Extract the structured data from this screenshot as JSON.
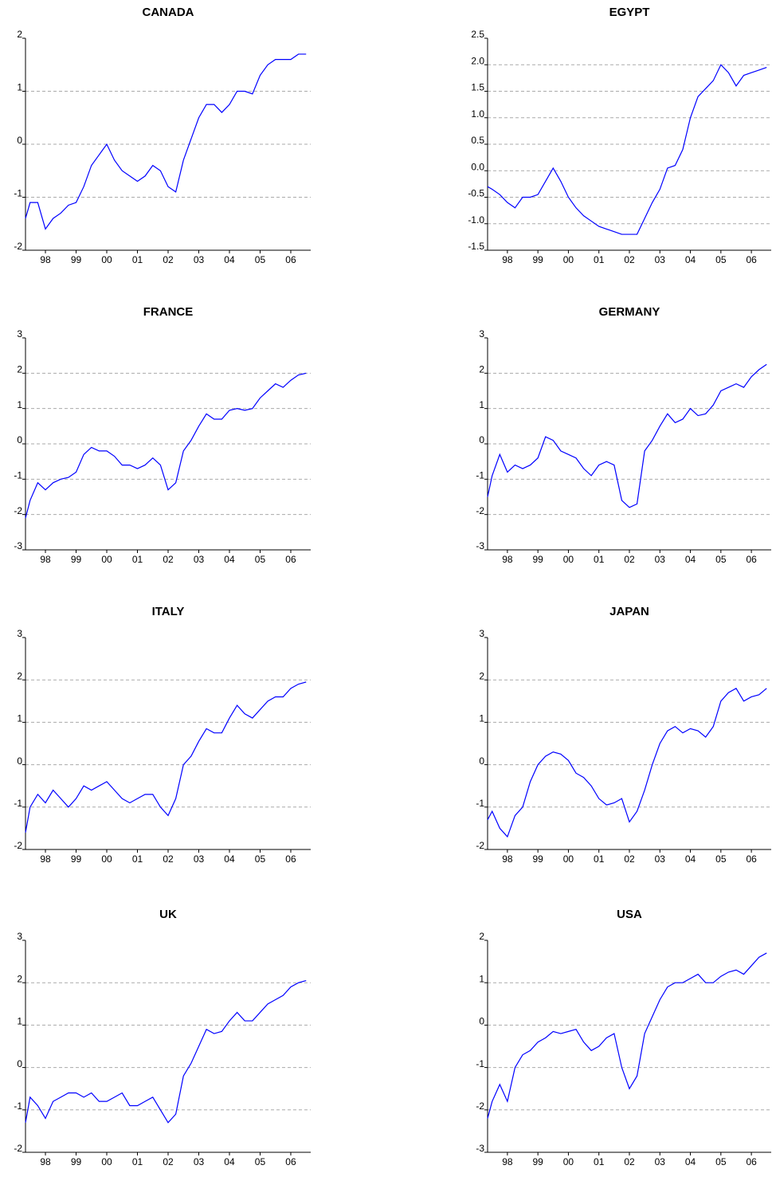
{
  "chart_data": [
    {
      "type": "line",
      "title": "CANADA",
      "grid": true,
      "xlim": [
        1997.85,
        2007.15
      ],
      "ylim": [
        -2,
        2
      ],
      "yticks": [
        -2,
        -1,
        0,
        1,
        2
      ],
      "xticks": [
        {
          "value": 1998.5,
          "label": "98"
        },
        {
          "value": 1999.5,
          "label": "99"
        },
        {
          "value": 2000.5,
          "label": "00"
        },
        {
          "value": 2001.5,
          "label": "01"
        },
        {
          "value": 2002.5,
          "label": "02"
        },
        {
          "value": 2003.5,
          "label": "03"
        },
        {
          "value": 2004.5,
          "label": "04"
        },
        {
          "value": 2005.5,
          "label": "05"
        },
        {
          "value": 2006.5,
          "label": "06"
        }
      ],
      "x": [
        1997.85,
        1998.0,
        1998.25,
        1998.5,
        1998.75,
        1999.0,
        1999.25,
        1999.5,
        1999.75,
        2000.0,
        2000.25,
        2000.5,
        2000.75,
        2001.0,
        2001.25,
        2001.5,
        2001.75,
        2002.0,
        2002.25,
        2002.5,
        2002.75,
        2003.0,
        2003.25,
        2003.5,
        2003.75,
        2004.0,
        2004.25,
        2004.5,
        2004.75,
        2005.0,
        2005.25,
        2005.5,
        2005.75,
        2006.0,
        2006.25,
        2006.5,
        2006.75,
        2007.0
      ],
      "color": "#0000ff",
      "values": [
        -1.4,
        -1.1,
        -1.1,
        -1.6,
        -1.4,
        -1.3,
        -1.15,
        -1.1,
        -0.8,
        -0.4,
        -0.2,
        0.0,
        -0.3,
        -0.5,
        -0.6,
        -0.7,
        -0.6,
        -0.4,
        -0.5,
        -0.8,
        -0.9,
        -0.3,
        0.1,
        0.5,
        0.75,
        0.75,
        0.6,
        0.75,
        1.0,
        1.0,
        0.95,
        1.3,
        1.5,
        1.6,
        1.6,
        1.6,
        1.7,
        1.7
      ]
    },
    {
      "type": "line",
      "title": "EGYPT",
      "grid": true,
      "xlim": [
        1997.85,
        2007.15
      ],
      "ylim": [
        -1.5,
        2.5
      ],
      "yticks": [
        -1.5,
        {
          "value": -1,
          "label": "-1.0"
        },
        -0.5,
        {
          "value": 0,
          "label": "0.0"
        },
        0.5,
        {
          "value": 1,
          "label": "1.0"
        },
        1.5,
        {
          "value": 2,
          "label": "2.0"
        },
        2.5
      ],
      "xticks": [
        {
          "value": 1998.5,
          "label": "98"
        },
        {
          "value": 1999.5,
          "label": "99"
        },
        {
          "value": 2000.5,
          "label": "00"
        },
        {
          "value": 2001.5,
          "label": "01"
        },
        {
          "value": 2002.5,
          "label": "02"
        },
        {
          "value": 2003.5,
          "label": "03"
        },
        {
          "value": 2004.5,
          "label": "04"
        },
        {
          "value": 2005.5,
          "label": "05"
        },
        {
          "value": 2006.5,
          "label": "06"
        }
      ],
      "x": [
        1997.85,
        1998.0,
        1998.25,
        1998.5,
        1998.75,
        1999.0,
        1999.25,
        1999.5,
        1999.75,
        2000.0,
        2000.25,
        2000.5,
        2000.75,
        2001.0,
        2001.25,
        2001.5,
        2001.75,
        2002.0,
        2002.25,
        2002.5,
        2002.75,
        2003.0,
        2003.25,
        2003.5,
        2003.75,
        2004.0,
        2004.25,
        2004.5,
        2004.75,
        2005.0,
        2005.25,
        2005.5,
        2005.75,
        2006.0,
        2006.25,
        2006.5,
        2006.75,
        2007.0
      ],
      "color": "#0000ff",
      "values": [
        -0.3,
        -0.35,
        -0.45,
        -0.6,
        -0.7,
        -0.5,
        -0.5,
        -0.45,
        -0.2,
        0.05,
        -0.2,
        -0.5,
        -0.7,
        -0.85,
        -0.95,
        -1.05,
        -1.1,
        -1.15,
        -1.2,
        -1.2,
        -1.2,
        -0.9,
        -0.6,
        -0.35,
        0.05,
        0.1,
        0.4,
        1.0,
        1.4,
        1.55,
        1.7,
        2.0,
        1.85,
        1.6,
        1.8,
        1.85,
        1.9,
        1.95
      ]
    },
    {
      "type": "line",
      "title": "FRANCE",
      "grid": true,
      "xlim": [
        1997.85,
        2007.15
      ],
      "ylim": [
        -3,
        3
      ],
      "yticks": [
        -3,
        -2,
        -1,
        0,
        1,
        2,
        3
      ],
      "xticks": [
        {
          "value": 1998.5,
          "label": "98"
        },
        {
          "value": 1999.5,
          "label": "99"
        },
        {
          "value": 2000.5,
          "label": "00"
        },
        {
          "value": 2001.5,
          "label": "01"
        },
        {
          "value": 2002.5,
          "label": "02"
        },
        {
          "value": 2003.5,
          "label": "03"
        },
        {
          "value": 2004.5,
          "label": "04"
        },
        {
          "value": 2005.5,
          "label": "05"
        },
        {
          "value": 2006.5,
          "label": "06"
        }
      ],
      "x": [
        1997.85,
        1998.0,
        1998.25,
        1998.5,
        1998.75,
        1999.0,
        1999.25,
        1999.5,
        1999.75,
        2000.0,
        2000.25,
        2000.5,
        2000.75,
        2001.0,
        2001.25,
        2001.5,
        2001.75,
        2002.0,
        2002.25,
        2002.5,
        2002.75,
        2003.0,
        2003.25,
        2003.5,
        2003.75,
        2004.0,
        2004.25,
        2004.5,
        2004.75,
        2005.0,
        2005.25,
        2005.5,
        2005.75,
        2006.0,
        2006.25,
        2006.5,
        2006.75,
        2007.0
      ],
      "color": "#0000ff",
      "values": [
        -2.1,
        -1.6,
        -1.1,
        -1.3,
        -1.1,
        -1.0,
        -0.95,
        -0.8,
        -0.3,
        -0.1,
        -0.2,
        -0.2,
        -0.35,
        -0.6,
        -0.6,
        -0.7,
        -0.6,
        -0.4,
        -0.6,
        -1.3,
        -1.1,
        -0.2,
        0.1,
        0.5,
        0.85,
        0.7,
        0.7,
        0.95,
        1.0,
        0.95,
        1.0,
        1.3,
        1.5,
        1.7,
        1.6,
        1.8,
        1.95,
        2.0
      ]
    },
    {
      "type": "line",
      "title": "GERMANY",
      "grid": true,
      "xlim": [
        1997.85,
        2007.15
      ],
      "ylim": [
        -3,
        3
      ],
      "yticks": [
        -3,
        -2,
        -1,
        0,
        1,
        2,
        3
      ],
      "xticks": [
        {
          "value": 1998.5,
          "label": "98"
        },
        {
          "value": 1999.5,
          "label": "99"
        },
        {
          "value": 2000.5,
          "label": "00"
        },
        {
          "value": 2001.5,
          "label": "01"
        },
        {
          "value": 2002.5,
          "label": "02"
        },
        {
          "value": 2003.5,
          "label": "03"
        },
        {
          "value": 2004.5,
          "label": "04"
        },
        {
          "value": 2005.5,
          "label": "05"
        },
        {
          "value": 2006.5,
          "label": "06"
        }
      ],
      "x": [
        1997.85,
        1998.0,
        1998.25,
        1998.5,
        1998.75,
        1999.0,
        1999.25,
        1999.5,
        1999.75,
        2000.0,
        2000.25,
        2000.5,
        2000.75,
        2001.0,
        2001.25,
        2001.5,
        2001.75,
        2002.0,
        2002.25,
        2002.5,
        2002.75,
        2003.0,
        2003.25,
        2003.5,
        2003.75,
        2004.0,
        2004.25,
        2004.5,
        2004.75,
        2005.0,
        2005.25,
        2005.5,
        2005.75,
        2006.0,
        2006.25,
        2006.5,
        2006.75,
        2007.0
      ],
      "color": "#0000ff",
      "values": [
        -1.5,
        -0.9,
        -0.3,
        -0.8,
        -0.6,
        -0.7,
        -0.6,
        -0.4,
        0.2,
        0.1,
        -0.2,
        -0.3,
        -0.4,
        -0.7,
        -0.9,
        -0.6,
        -0.5,
        -0.6,
        -1.6,
        -1.8,
        -1.7,
        -0.2,
        0.1,
        0.5,
        0.85,
        0.6,
        0.7,
        1.0,
        0.8,
        0.85,
        1.1,
        1.5,
        1.6,
        1.7,
        1.6,
        1.9,
        2.1,
        2.25
      ]
    },
    {
      "type": "line",
      "title": "ITALY",
      "grid": true,
      "xlim": [
        1997.85,
        2007.15
      ],
      "ylim": [
        -2,
        3
      ],
      "yticks": [
        -2,
        -1,
        0,
        1,
        2,
        3
      ],
      "xticks": [
        {
          "value": 1998.5,
          "label": "98"
        },
        {
          "value": 1999.5,
          "label": "99"
        },
        {
          "value": 2000.5,
          "label": "00"
        },
        {
          "value": 2001.5,
          "label": "01"
        },
        {
          "value": 2002.5,
          "label": "02"
        },
        {
          "value": 2003.5,
          "label": "03"
        },
        {
          "value": 2004.5,
          "label": "04"
        },
        {
          "value": 2005.5,
          "label": "05"
        },
        {
          "value": 2006.5,
          "label": "06"
        }
      ],
      "x": [
        1997.85,
        1998.0,
        1998.25,
        1998.5,
        1998.75,
        1999.0,
        1999.25,
        1999.5,
        1999.75,
        2000.0,
        2000.25,
        2000.5,
        2000.75,
        2001.0,
        2001.25,
        2001.5,
        2001.75,
        2002.0,
        2002.25,
        2002.5,
        2002.75,
        2003.0,
        2003.25,
        2003.5,
        2003.75,
        2004.0,
        2004.25,
        2004.5,
        2004.75,
        2005.0,
        2005.25,
        2005.5,
        2005.75,
        2006.0,
        2006.25,
        2006.5,
        2006.75,
        2007.0
      ],
      "color": "#0000ff",
      "values": [
        -1.6,
        -1.0,
        -0.7,
        -0.9,
        -0.6,
        -0.8,
        -1.0,
        -0.8,
        -0.5,
        -0.6,
        -0.5,
        -0.4,
        -0.6,
        -0.8,
        -0.9,
        -0.8,
        -0.7,
        -0.7,
        -1.0,
        -1.2,
        -0.8,
        0.0,
        0.2,
        0.55,
        0.85,
        0.75,
        0.75,
        1.1,
        1.4,
        1.2,
        1.1,
        1.3,
        1.5,
        1.6,
        1.6,
        1.8,
        1.9,
        1.95
      ]
    },
    {
      "type": "line",
      "title": "JAPAN",
      "grid": true,
      "xlim": [
        1997.85,
        2007.15
      ],
      "ylim": [
        -2,
        3
      ],
      "yticks": [
        -2,
        -1,
        0,
        1,
        2,
        3
      ],
      "xticks": [
        {
          "value": 1998.5,
          "label": "98"
        },
        {
          "value": 1999.5,
          "label": "99"
        },
        {
          "value": 2000.5,
          "label": "00"
        },
        {
          "value": 2001.5,
          "label": "01"
        },
        {
          "value": 2002.5,
          "label": "02"
        },
        {
          "value": 2003.5,
          "label": "03"
        },
        {
          "value": 2004.5,
          "label": "04"
        },
        {
          "value": 2005.5,
          "label": "05"
        },
        {
          "value": 2006.5,
          "label": "06"
        }
      ],
      "x": [
        1997.85,
        1998.0,
        1998.25,
        1998.5,
        1998.75,
        1999.0,
        1999.25,
        1999.5,
        1999.75,
        2000.0,
        2000.25,
        2000.5,
        2000.75,
        2001.0,
        2001.25,
        2001.5,
        2001.75,
        2002.0,
        2002.25,
        2002.5,
        2002.75,
        2003.0,
        2003.25,
        2003.5,
        2003.75,
        2004.0,
        2004.25,
        2004.5,
        2004.75,
        2005.0,
        2005.25,
        2005.5,
        2005.75,
        2006.0,
        2006.25,
        2006.5,
        2006.75,
        2007.0
      ],
      "color": "#0000ff",
      "values": [
        -1.3,
        -1.1,
        -1.5,
        -1.7,
        -1.2,
        -1.0,
        -0.4,
        0.0,
        0.2,
        0.3,
        0.25,
        0.1,
        -0.2,
        -0.3,
        -0.5,
        -0.8,
        -0.95,
        -0.9,
        -0.8,
        -1.35,
        -1.1,
        -0.6,
        0.0,
        0.5,
        0.8,
        0.9,
        0.75,
        0.85,
        0.8,
        0.65,
        0.9,
        1.5,
        1.7,
        1.8,
        1.5,
        1.6,
        1.65,
        1.8
      ]
    },
    {
      "type": "line",
      "title": "UK",
      "grid": true,
      "xlim": [
        1997.85,
        2007.15
      ],
      "ylim": [
        -2,
        3
      ],
      "yticks": [
        -2,
        -1,
        0,
        1,
        2,
        3
      ],
      "xticks": [
        {
          "value": 1998.5,
          "label": "98"
        },
        {
          "value": 1999.5,
          "label": "99"
        },
        {
          "value": 2000.5,
          "label": "00"
        },
        {
          "value": 2001.5,
          "label": "01"
        },
        {
          "value": 2002.5,
          "label": "02"
        },
        {
          "value": 2003.5,
          "label": "03"
        },
        {
          "value": 2004.5,
          "label": "04"
        },
        {
          "value": 2005.5,
          "label": "05"
        },
        {
          "value": 2006.5,
          "label": "06"
        }
      ],
      "x": [
        1997.85,
        1998.0,
        1998.25,
        1998.5,
        1998.75,
        1999.0,
        1999.25,
        1999.5,
        1999.75,
        2000.0,
        2000.25,
        2000.5,
        2000.75,
        2001.0,
        2001.25,
        2001.5,
        2001.75,
        2002.0,
        2002.25,
        2002.5,
        2002.75,
        2003.0,
        2003.25,
        2003.5,
        2003.75,
        2004.0,
        2004.25,
        2004.5,
        2004.75,
        2005.0,
        2005.25,
        2005.5,
        2005.75,
        2006.0,
        2006.25,
        2006.5,
        2006.75,
        2007.0
      ],
      "color": "#0000ff",
      "values": [
        -1.3,
        -0.7,
        -0.9,
        -1.2,
        -0.8,
        -0.7,
        -0.6,
        -0.6,
        -0.7,
        -0.6,
        -0.8,
        -0.8,
        -0.7,
        -0.6,
        -0.9,
        -0.9,
        -0.8,
        -0.7,
        -1.0,
        -1.3,
        -1.1,
        -0.2,
        0.1,
        0.5,
        0.9,
        0.8,
        0.85,
        1.1,
        1.3,
        1.1,
        1.1,
        1.3,
        1.5,
        1.6,
        1.7,
        1.9,
        2.0,
        2.05
      ]
    },
    {
      "type": "line",
      "title": "USA",
      "grid": true,
      "xlim": [
        1997.85,
        2007.15
      ],
      "ylim": [
        -3,
        2
      ],
      "yticks": [
        -3,
        -2,
        -1,
        0,
        1,
        2
      ],
      "xticks": [
        {
          "value": 1998.5,
          "label": "98"
        },
        {
          "value": 1999.5,
          "label": "99"
        },
        {
          "value": 2000.5,
          "label": "00"
        },
        {
          "value": 2001.5,
          "label": "01"
        },
        {
          "value": 2002.5,
          "label": "02"
        },
        {
          "value": 2003.5,
          "label": "03"
        },
        {
          "value": 2004.5,
          "label": "04"
        },
        {
          "value": 2005.5,
          "label": "05"
        },
        {
          "value": 2006.5,
          "label": "06"
        }
      ],
      "x": [
        1997.85,
        1998.0,
        1998.25,
        1998.5,
        1998.75,
        1999.0,
        1999.25,
        1999.5,
        1999.75,
        2000.0,
        2000.25,
        2000.5,
        2000.75,
        2001.0,
        2001.25,
        2001.5,
        2001.75,
        2002.0,
        2002.25,
        2002.5,
        2002.75,
        2003.0,
        2003.25,
        2003.5,
        2003.75,
        2004.0,
        2004.25,
        2004.5,
        2004.75,
        2005.0,
        2005.25,
        2005.5,
        2005.75,
        2006.0,
        2006.25,
        2006.5,
        2006.75,
        2007.0
      ],
      "color": "#0000ff",
      "values": [
        -2.2,
        -1.8,
        -1.4,
        -1.8,
        -1.0,
        -0.7,
        -0.6,
        -0.4,
        -0.3,
        -0.15,
        -0.2,
        -0.15,
        -0.1,
        -0.4,
        -0.6,
        -0.5,
        -0.3,
        -0.2,
        -1.0,
        -1.5,
        -1.2,
        -0.2,
        0.2,
        0.6,
        0.9,
        1.0,
        1.0,
        1.1,
        1.2,
        1.0,
        1.0,
        1.15,
        1.25,
        1.3,
        1.2,
        1.4,
        1.6,
        1.7
      ]
    }
  ]
}
